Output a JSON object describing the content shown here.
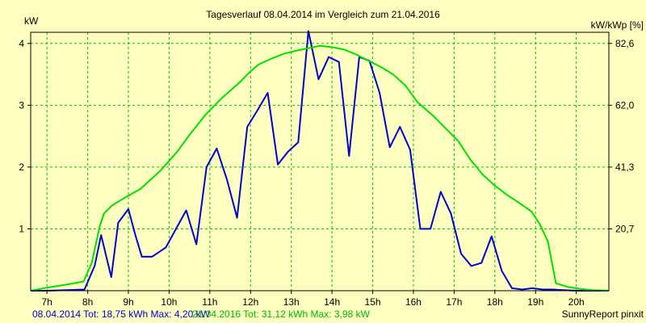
{
  "chart_data": {
    "type": "line",
    "title": "Tagesverlauf 08.04.2014 im Vergleich zum 21.04.2016",
    "ylabel_left": "kW",
    "ylabel_right": "kW/kWp [%]",
    "xlim": [
      6.6,
      20.8
    ],
    "ylim": [
      0,
      4.18
    ],
    "x_ticks": [
      {
        "value": 7,
        "label": "7h"
      },
      {
        "value": 8,
        "label": "8h"
      },
      {
        "value": 9,
        "label": "9h"
      },
      {
        "value": 10,
        "label": "10h"
      },
      {
        "value": 11,
        "label": "11h"
      },
      {
        "value": 12,
        "label": "12h"
      },
      {
        "value": 13,
        "label": "13h"
      },
      {
        "value": 14,
        "label": "14h"
      },
      {
        "value": 15,
        "label": "15h"
      },
      {
        "value": 16,
        "label": "16h"
      },
      {
        "value": 17,
        "label": "17h"
      },
      {
        "value": 18,
        "label": "18h"
      },
      {
        "value": 19,
        "label": "19h"
      },
      {
        "value": 20,
        "label": "20h"
      }
    ],
    "y_ticks_left": [
      {
        "value": 1,
        "label": "1"
      },
      {
        "value": 2,
        "label": "2"
      },
      {
        "value": 3,
        "label": "3"
      },
      {
        "value": 4,
        "label": "4"
      }
    ],
    "y_ticks_right": [
      {
        "value": 1,
        "label": "20,7"
      },
      {
        "value": 2,
        "label": "41,3"
      },
      {
        "value": 3,
        "label": "62,0"
      },
      {
        "value": 4,
        "label": "82,6"
      }
    ],
    "grid": true,
    "series": [
      {
        "name": "08.04.2014",
        "color": "#0000cc",
        "points": [
          [
            6.6,
            0.0
          ],
          [
            7.0,
            0.0
          ],
          [
            7.5,
            0.01
          ],
          [
            7.92,
            0.02
          ],
          [
            8.17,
            0.4
          ],
          [
            8.33,
            0.9
          ],
          [
            8.58,
            0.22
          ],
          [
            8.75,
            1.1
          ],
          [
            9.0,
            1.32
          ],
          [
            9.17,
            0.9
          ],
          [
            9.33,
            0.55
          ],
          [
            9.58,
            0.55
          ],
          [
            9.92,
            0.7
          ],
          [
            10.17,
            1.0
          ],
          [
            10.42,
            1.3
          ],
          [
            10.67,
            0.75
          ],
          [
            10.92,
            2.0
          ],
          [
            11.17,
            2.3
          ],
          [
            11.42,
            1.8
          ],
          [
            11.67,
            1.18
          ],
          [
            11.92,
            2.65
          ],
          [
            12.17,
            2.92
          ],
          [
            12.42,
            3.2
          ],
          [
            12.67,
            2.04
          ],
          [
            12.92,
            2.25
          ],
          [
            13.17,
            2.4
          ],
          [
            13.42,
            4.2
          ],
          [
            13.67,
            3.42
          ],
          [
            13.92,
            3.78
          ],
          [
            14.17,
            3.7
          ],
          [
            14.42,
            2.18
          ],
          [
            14.67,
            3.78
          ],
          [
            14.92,
            3.72
          ],
          [
            15.17,
            3.2
          ],
          [
            15.42,
            2.32
          ],
          [
            15.67,
            2.65
          ],
          [
            15.92,
            2.28
          ],
          [
            16.17,
            1.0
          ],
          [
            16.42,
            1.0
          ],
          [
            16.67,
            1.6
          ],
          [
            16.92,
            1.25
          ],
          [
            17.17,
            0.6
          ],
          [
            17.42,
            0.4
          ],
          [
            17.67,
            0.45
          ],
          [
            17.92,
            0.88
          ],
          [
            18.17,
            0.32
          ],
          [
            18.42,
            0.04
          ],
          [
            18.67,
            0.02
          ],
          [
            18.92,
            0.04
          ],
          [
            19.17,
            0.02
          ],
          [
            19.42,
            0.02
          ],
          [
            19.67,
            0.01
          ],
          [
            20.0,
            0.0
          ],
          [
            20.8,
            0.0
          ]
        ]
      },
      {
        "name": "21.04.2016",
        "color": "#00dd00",
        "points": [
          [
            6.6,
            0.0
          ],
          [
            7.0,
            0.05
          ],
          [
            7.5,
            0.1
          ],
          [
            7.9,
            0.15
          ],
          [
            8.1,
            0.45
          ],
          [
            8.3,
            1.05
          ],
          [
            8.4,
            1.25
          ],
          [
            8.6,
            1.38
          ],
          [
            8.9,
            1.5
          ],
          [
            9.3,
            1.65
          ],
          [
            9.8,
            1.95
          ],
          [
            10.2,
            2.25
          ],
          [
            10.5,
            2.52
          ],
          [
            10.9,
            2.85
          ],
          [
            11.3,
            3.12
          ],
          [
            11.7,
            3.35
          ],
          [
            12.0,
            3.55
          ],
          [
            12.2,
            3.66
          ],
          [
            12.5,
            3.75
          ],
          [
            12.8,
            3.83
          ],
          [
            13.1,
            3.88
          ],
          [
            13.4,
            3.92
          ],
          [
            13.7,
            3.96
          ],
          [
            14.0,
            3.94
          ],
          [
            14.3,
            3.9
          ],
          [
            14.6,
            3.82
          ],
          [
            14.9,
            3.72
          ],
          [
            15.2,
            3.62
          ],
          [
            15.5,
            3.5
          ],
          [
            15.8,
            3.32
          ],
          [
            16.1,
            3.05
          ],
          [
            16.5,
            2.82
          ],
          [
            16.8,
            2.62
          ],
          [
            17.1,
            2.42
          ],
          [
            17.4,
            2.12
          ],
          [
            17.7,
            1.88
          ],
          [
            18.0,
            1.7
          ],
          [
            18.3,
            1.55
          ],
          [
            18.6,
            1.42
          ],
          [
            18.9,
            1.28
          ],
          [
            19.1,
            1.08
          ],
          [
            19.3,
            0.8
          ],
          [
            19.5,
            0.12
          ],
          [
            19.8,
            0.06
          ],
          [
            20.1,
            0.03
          ],
          [
            20.4,
            0.01
          ],
          [
            20.8,
            0.0
          ]
        ]
      }
    ]
  },
  "footer": {
    "series1_text": "08.04.2014 Tot: 18,75 kWh Max: 4,20 kW",
    "series2_text": "21.04.2016 Tot: 31,12 kWh Max: 3,98 kW",
    "brand": "SunnyReport pinxit"
  }
}
